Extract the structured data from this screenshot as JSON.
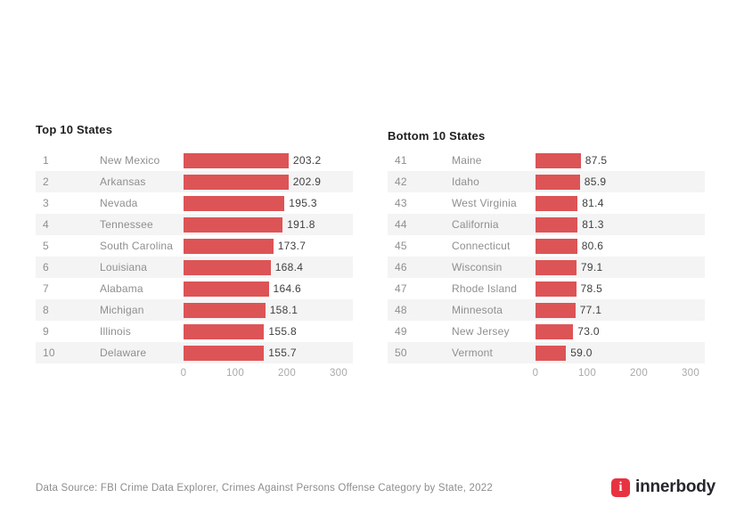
{
  "colors": {
    "bar": "#dd5456",
    "stripe": "#f4f4f5",
    "logo_red": "#e73240"
  },
  "footer": {
    "source": "Data Source: FBI Crime Data Explorer, Crimes Against Persons Offense Category by State, 2022"
  },
  "logo": {
    "icon_letter": "i",
    "text": "innerbody"
  },
  "chart_data": [
    {
      "type": "bar",
      "orientation": "horizontal",
      "title": "Top 10 States",
      "ranks": [
        1,
        2,
        3,
        4,
        5,
        6,
        7,
        8,
        9,
        10
      ],
      "categories": [
        "New Mexico",
        "Arkansas",
        "Nevada",
        "Tennessee",
        "South Carolina",
        "Louisiana",
        "Alabama",
        "Michigan",
        "Illinois",
        "Delaware"
      ],
      "values": [
        203.2,
        202.9,
        195.3,
        191.8,
        173.7,
        168.4,
        164.6,
        158.1,
        155.8,
        155.7
      ],
      "value_labels": [
        "203.2",
        "202.9",
        "195.3",
        "191.8",
        "173.7",
        "168.4",
        "164.6",
        "158.1",
        "155.8",
        "155.7"
      ],
      "xlim": [
        0,
        300
      ],
      "xticks": [
        0,
        100,
        200,
        300
      ],
      "grid": false,
      "legend": false,
      "bar_color": "#dd5456"
    },
    {
      "type": "bar",
      "orientation": "horizontal",
      "title": "Bottom 10 States",
      "ranks": [
        41,
        42,
        43,
        44,
        45,
        46,
        47,
        48,
        49,
        50
      ],
      "categories": [
        "Maine",
        "Idaho",
        "West Virginia",
        "California",
        "Connecticut",
        "Wisconsin",
        "Rhode Island",
        "Minnesota",
        "New Jersey",
        "Vermont"
      ],
      "values": [
        87.5,
        85.9,
        81.4,
        81.3,
        80.6,
        79.1,
        78.5,
        77.1,
        73.0,
        59.0
      ],
      "value_labels": [
        "87.5",
        "85.9",
        "81.4",
        "81.3",
        "80.6",
        "79.1",
        "78.5",
        "77.1",
        "73.0",
        "59.0"
      ],
      "xlim": [
        0,
        300
      ],
      "xticks": [
        0,
        100,
        200,
        300
      ],
      "grid": false,
      "legend": false,
      "bar_color": "#dd5456"
    }
  ]
}
